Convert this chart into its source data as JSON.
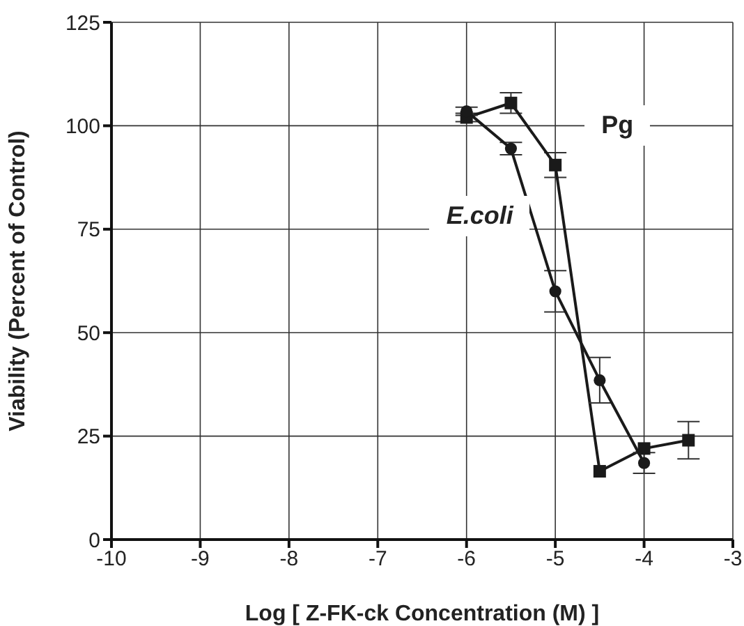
{
  "chart_data": {
    "type": "line",
    "xlabel": "Log [ Z-FK-ck Concentration (M) ]",
    "ylabel": "Viability (Percent of Control)",
    "xlim": [
      -10,
      -3
    ],
    "xticks": [
      -10,
      -9,
      -8,
      -7,
      -6,
      -5,
      -4,
      -3
    ],
    "ylim": [
      0,
      125
    ],
    "yticks": [
      0,
      25,
      50,
      75,
      100,
      125
    ],
    "grid": true,
    "line_style": "solid",
    "series": [
      {
        "name": "Pg",
        "color": "#1a1a1a",
        "marker": "square",
        "x": [
          -6,
          -5.5,
          -5,
          -4.5,
          -4,
          -3.5
        ],
        "values": [
          102,
          105.5,
          90.5,
          16.5,
          22,
          24
        ],
        "errors": [
          1,
          2.5,
          3,
          null,
          null,
          4.5
        ]
      },
      {
        "name": "E.coli",
        "color": "#1a1a1a",
        "marker": "circle",
        "x": [
          -6,
          -5.5,
          -5,
          -4.5,
          -4
        ],
        "values": [
          103.5,
          94.5,
          60,
          38.5,
          18.5
        ],
        "errors": [
          1,
          1.5,
          5,
          5.5,
          2.5
        ]
      }
    ]
  }
}
